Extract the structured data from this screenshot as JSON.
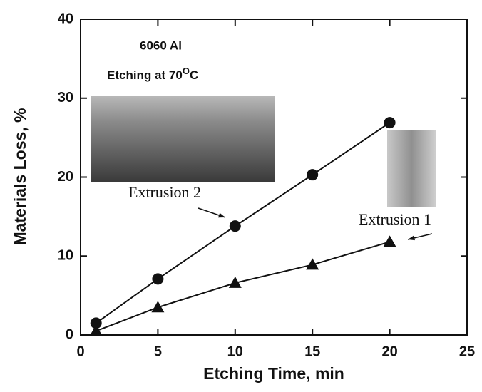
{
  "chart_data": {
    "type": "line",
    "annotations": [
      "6060 Al",
      "Etching at 70",
      "O",
      "C"
    ],
    "x_label": "Etching Time, min",
    "y_label": "Materials Loss, %",
    "xlim": [
      0,
      25
    ],
    "xticks": [
      0,
      5,
      10,
      15,
      20,
      25
    ],
    "ylim": [
      0,
      40
    ],
    "yticks": [
      0,
      10,
      20,
      30,
      40
    ],
    "series": [
      {
        "name": "Extrusion 2",
        "marker": "circle",
        "color": "#111111",
        "x": [
          1,
          5,
          10,
          15,
          20
        ],
        "values": [
          1.5,
          7.1,
          13.8,
          20.3,
          26.9
        ]
      },
      {
        "name": "Extrusion 1",
        "marker": "triangle",
        "color": "#111111",
        "x": [
          1,
          5,
          10,
          15,
          20
        ],
        "values": [
          0.5,
          3.5,
          6.6,
          8.9,
          11.8
        ]
      }
    ]
  }
}
